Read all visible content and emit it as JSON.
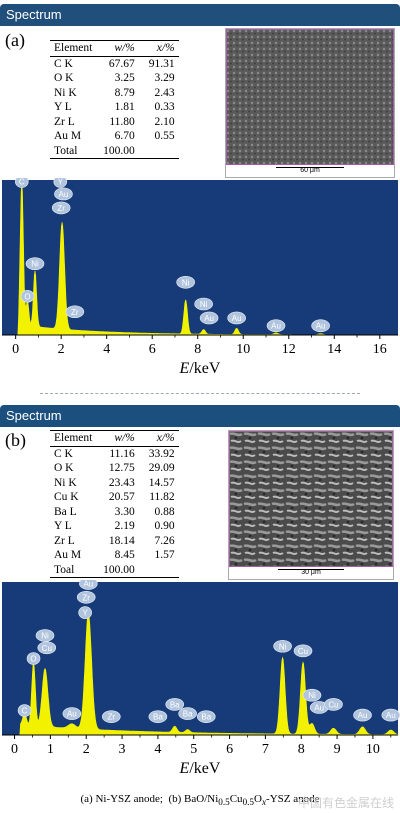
{
  "panels": [
    {
      "header": "Spectrum",
      "letter": "(a)",
      "table": {
        "headers": [
          "Element",
          "w/%",
          "x/%"
        ],
        "rows": [
          [
            "C K",
            "67.67",
            "91.31"
          ],
          [
            "O K",
            "3.25",
            "3.29"
          ],
          [
            "Ni K",
            "8.79",
            "2.43"
          ],
          [
            "Y L",
            "1.81",
            "0.33"
          ],
          [
            "Zr L",
            "11.80",
            "2.10"
          ],
          [
            "Au M",
            "6.70",
            "0.55"
          ],
          [
            "Total",
            "100.00",
            ""
          ]
        ]
      },
      "sem_scale": "60 μm"
    },
    {
      "header": "Spectrum",
      "letter": "(b)",
      "table": {
        "headers": [
          "Element",
          "w/%",
          "x/%"
        ],
        "rows": [
          [
            "C K",
            "11.16",
            "33.92"
          ],
          [
            "O K",
            "12.75",
            "29.09"
          ],
          [
            "Ni K",
            "23.43",
            "14.57"
          ],
          [
            "Cu K",
            "20.57",
            "11.82"
          ],
          [
            "Ba L",
            "3.30",
            "0.88"
          ],
          [
            "Y L",
            "2.19",
            "0.90"
          ],
          [
            "Zr L",
            "18.14",
            "7.26"
          ],
          [
            "Au M",
            "8.45",
            "1.57"
          ],
          [
            "Toal",
            "100.00",
            ""
          ]
        ]
      },
      "sem_scale": "30 μm"
    }
  ],
  "colors": {
    "plot_bg": "#173a78",
    "spectrum": "#f2f200",
    "label_bubble": "#b0c4de",
    "header_bar": "#1f4f7a"
  },
  "chart_data": [
    {
      "type": "area",
      "xlabel_var": "E",
      "xlabel_unit": "/keV",
      "xlim": [
        -0.6,
        16.8
      ],
      "ticks": [
        0,
        2,
        4,
        6,
        8,
        10,
        12,
        14,
        16
      ],
      "ymax": 1.0,
      "peaks": [
        {
          "x": 0.27,
          "h": 0.93,
          "w": 0.07
        },
        {
          "x": 0.52,
          "h": 0.16,
          "w": 0.06
        },
        {
          "x": 0.85,
          "h": 0.36,
          "w": 0.07
        },
        {
          "x": 2.04,
          "h": 0.69,
          "w": 0.11
        },
        {
          "x": 7.47,
          "h": 0.22,
          "w": 0.08
        },
        {
          "x": 8.26,
          "h": 0.03,
          "w": 0.08
        },
        {
          "x": 9.71,
          "h": 0.04,
          "w": 0.08
        },
        {
          "x": 11.44,
          "h": 0.012,
          "w": 0.1
        },
        {
          "x": 13.4,
          "h": 0.008,
          "w": 0.1
        }
      ],
      "annotations": [
        {
          "label": "C",
          "x": 0.27,
          "y": 0.99
        },
        {
          "label": "Y",
          "x": 1.96,
          "y": 0.99
        },
        {
          "label": "Au",
          "x": 2.1,
          "y": 0.91
        },
        {
          "label": "Zr",
          "x": 2.0,
          "y": 0.82
        },
        {
          "label": "Ni",
          "x": 0.85,
          "y": 0.46
        },
        {
          "label": "O",
          "x": 0.52,
          "y": 0.25
        },
        {
          "label": "Zr",
          "x": 2.6,
          "y": 0.15
        },
        {
          "label": "Ni",
          "x": 7.47,
          "y": 0.34
        },
        {
          "label": "Ni",
          "x": 8.26,
          "y": 0.2
        },
        {
          "label": "Au",
          "x": 8.5,
          "y": 0.11
        },
        {
          "label": "Au",
          "x": 9.71,
          "y": 0.11
        },
        {
          "label": "Au",
          "x": 11.44,
          "y": 0.06
        },
        {
          "label": "Au",
          "x": 13.4,
          "y": 0.06
        }
      ]
    },
    {
      "type": "area",
      "xlabel_var": "E",
      "xlabel_unit": "/keV",
      "xlim": [
        -0.35,
        10.7
      ],
      "ticks": [
        0,
        1,
        2,
        3,
        4,
        5,
        6,
        7,
        8,
        9,
        10
      ],
      "ymax": 1.0,
      "peaks": [
        {
          "x": 0.28,
          "h": 0.08,
          "w": 0.05
        },
        {
          "x": 0.53,
          "h": 0.42,
          "w": 0.05
        },
        {
          "x": 0.85,
          "h": 0.38,
          "w": 0.08
        },
        {
          "x": 1.6,
          "h": 0.03,
          "w": 0.1
        },
        {
          "x": 2.06,
          "h": 0.76,
          "w": 0.09
        },
        {
          "x": 4.47,
          "h": 0.04,
          "w": 0.06
        },
        {
          "x": 4.83,
          "h": 0.02,
          "w": 0.06
        },
        {
          "x": 7.48,
          "h": 0.5,
          "w": 0.07
        },
        {
          "x": 8.05,
          "h": 0.47,
          "w": 0.07
        },
        {
          "x": 8.3,
          "h": 0.07,
          "w": 0.07
        },
        {
          "x": 8.9,
          "h": 0.04,
          "w": 0.08
        },
        {
          "x": 9.71,
          "h": 0.05,
          "w": 0.08
        },
        {
          "x": 10.5,
          "h": 0.03,
          "w": 0.08
        }
      ],
      "annotations": [
        {
          "label": "Au",
          "x": 2.06,
          "y": 0.99
        },
        {
          "label": "Zr",
          "x": 2.0,
          "y": 0.9
        },
        {
          "label": "Y",
          "x": 1.97,
          "y": 0.8
        },
        {
          "label": "Ni",
          "x": 0.85,
          "y": 0.65
        },
        {
          "label": "Cu",
          "x": 0.9,
          "y": 0.57
        },
        {
          "label": "O",
          "x": 0.53,
          "y": 0.5
        },
        {
          "label": "C",
          "x": 0.28,
          "y": 0.16
        },
        {
          "label": "Au",
          "x": 1.6,
          "y": 0.14
        },
        {
          "label": "Zr",
          "x": 2.7,
          "y": 0.12
        },
        {
          "label": "Ba",
          "x": 4.0,
          "y": 0.12
        },
        {
          "label": "Ba",
          "x": 4.47,
          "y": 0.2
        },
        {
          "label": "Ba",
          "x": 4.83,
          "y": 0.14
        },
        {
          "label": "Ba",
          "x": 5.35,
          "y": 0.12
        },
        {
          "label": "Ni",
          "x": 7.48,
          "y": 0.58
        },
        {
          "label": "Cu",
          "x": 8.05,
          "y": 0.55
        },
        {
          "label": "Ni",
          "x": 8.3,
          "y": 0.26
        },
        {
          "label": "Au",
          "x": 8.5,
          "y": 0.18
        },
        {
          "label": "Cu",
          "x": 8.9,
          "y": 0.2
        },
        {
          "label": "Au",
          "x": 9.71,
          "y": 0.13
        },
        {
          "label": "Au",
          "x": 10.5,
          "y": 0.13
        }
      ]
    }
  ],
  "caption": {
    "a": "(a)  Ni-YSZ  anode;",
    "b_pre": "(b)  BaO/Ni",
    "b_sub1": "0.5",
    "b_mid": "Cu",
    "b_sub2": "0.5",
    "b_mid2": "O",
    "b_sub3": "x",
    "b_post": "-YSZ  anode"
  },
  "watermark": "中国有色金属在线"
}
